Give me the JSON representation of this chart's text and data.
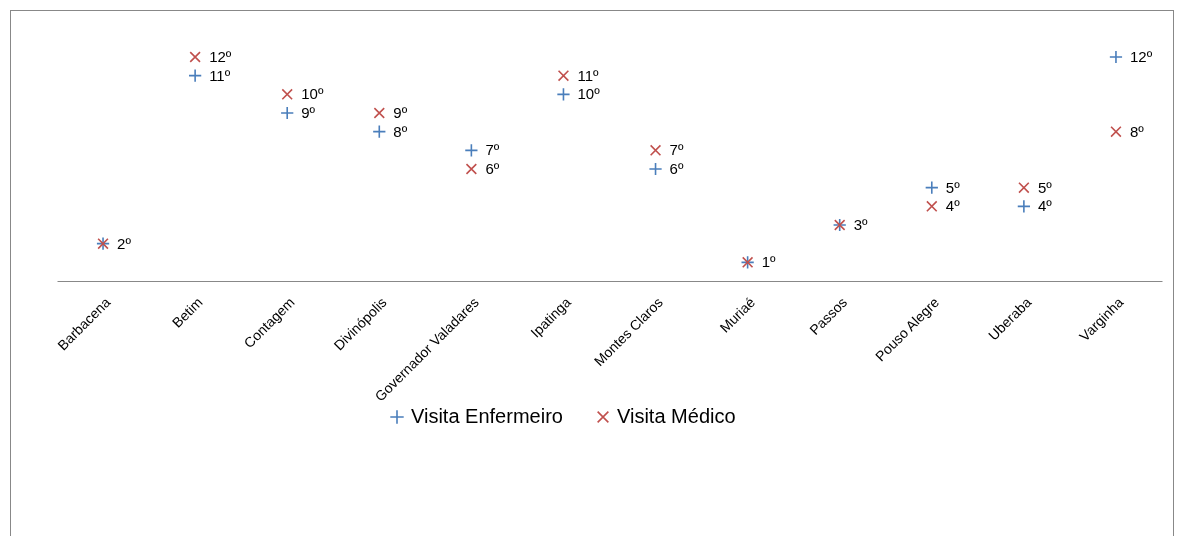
{
  "chart_data": {
    "type": "scatter",
    "categories": [
      "Barbacena",
      "Betim",
      "Contagem",
      "Divinópolis",
      "Governador Valadares",
      "Ipatinga",
      "Montes Claros",
      "Muriaé",
      "Passos",
      "Pouso Alegre",
      "Uberaba",
      "Varginha"
    ],
    "series": [
      {
        "name": "Visita Enfermeiro",
        "color": "#4a7ebb",
        "marker": "plus",
        "values": [
          2,
          11,
          9,
          8,
          7,
          10,
          6,
          1,
          3,
          5,
          4,
          12
        ],
        "value_labels": [
          "2º",
          "11º",
          "9º",
          "8º",
          "7º",
          "10º",
          "6º",
          "1º",
          "3º",
          "5º",
          "4º",
          "12º"
        ]
      },
      {
        "name": "Visita Médico",
        "color": "#c0504d",
        "marker": "cross",
        "values": [
          2,
          12,
          10,
          9,
          6,
          11,
          7,
          1,
          3,
          4,
          5,
          8
        ],
        "value_labels": [
          null,
          "12º",
          "10º",
          "9º",
          "6º",
          "11º",
          "7º",
          null,
          null,
          "4º",
          "5º",
          "8º"
        ]
      }
    ],
    "tick_labels": "x",
    "grid": false,
    "legend": "bottom"
  }
}
